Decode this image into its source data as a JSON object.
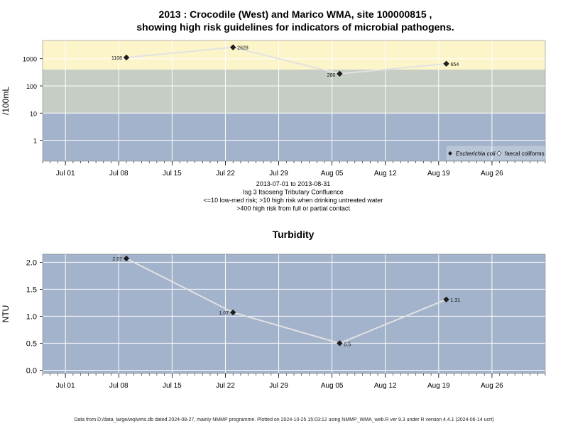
{
  "chart_data": [
    {
      "type": "scatter",
      "title": "2013 : Crocodile (West) and Marico WMA, site 100000815 ,",
      "subtitle": "showing high risk guidelines for indicators of microbial pathogens.",
      "ylabel": "/100mL",
      "y_scale": "log",
      "yticks": [
        1,
        10,
        100,
        1000
      ],
      "ytick_labels": [
        "1",
        "10",
        "100",
        "1000"
      ],
      "xticks": [
        "Jul 01",
        "Jul 08",
        "Jul 15",
        "Jul 22",
        "Jul 29",
        "Aug 05",
        "Aug 12",
        "Aug 19",
        "Aug 26"
      ],
      "xtick_dates": [
        "2013-07-01",
        "2013-07-08",
        "2013-07-15",
        "2013-07-22",
        "2013-07-29",
        "2013-08-05",
        "2013-08-12",
        "2013-08-19",
        "2013-08-26"
      ],
      "x_range": [
        "2013-06-28",
        "2013-09-02"
      ],
      "y_range": [
        0.17,
        4700
      ],
      "grid": true,
      "legend_position": "bottom-right",
      "bands": [
        {
          "from": 0.17,
          "to": 10,
          "color": "#a2b3cb",
          "label": "<=10 low-med risk"
        },
        {
          "from": 10,
          "to": 400,
          "color": "#c5cdc4",
          "label": ">10 high risk when drinking untreated water"
        },
        {
          "from": 400,
          "to": 4700,
          "color": "#fcf5c9",
          "label": ">400 high risk from full or partial contact"
        }
      ],
      "series": [
        {
          "name": "Escherichia coli",
          "marker": "filled-diamond",
          "points": [
            {
              "x": "2013-07-09",
              "y": 1108,
              "label": "1108"
            },
            {
              "x": "2013-07-23",
              "y": 2628,
              "label": "2628"
            },
            {
              "x": "2013-08-06",
              "y": 280,
              "label": "280"
            },
            {
              "x": "2013-08-20",
              "y": 654,
              "label": "654"
            }
          ]
        },
        {
          "name": "faecal coliforms",
          "marker": "open-diamond",
          "points": []
        }
      ],
      "caption_lines": [
        "2013-07-01 to 2013-08-31",
        "Isg 3 Itsoseng Tributary Confluence",
        "<=10 low-med risk; >10 high risk when drinking untreated water",
        ">400 high risk from full or partial contact"
      ]
    },
    {
      "type": "line",
      "title": "Turbidity",
      "ylabel": "NTU",
      "y_scale": "linear",
      "yticks": [
        0,
        0.5,
        1,
        1.5,
        2
      ],
      "ytick_labels": [
        "0.0",
        "0.5",
        "1.0",
        "1.5",
        "2.0"
      ],
      "xticks": [
        "Jul 01",
        "Jul 08",
        "Jul 15",
        "Jul 22",
        "Jul 29",
        "Aug 05",
        "Aug 12",
        "Aug 19",
        "Aug 26"
      ],
      "xtick_dates": [
        "2013-07-01",
        "2013-07-08",
        "2013-07-15",
        "2013-07-22",
        "2013-07-29",
        "2013-08-05",
        "2013-08-12",
        "2013-08-19",
        "2013-08-26"
      ],
      "x_range": [
        "2013-06-28",
        "2013-09-02"
      ],
      "y_range": [
        -0.06,
        2.15
      ],
      "grid": true,
      "background": "#a2b3cb",
      "series": [
        {
          "name": "",
          "points": [
            {
              "x": "2013-07-09",
              "y": 2.07,
              "label": "2.07"
            },
            {
              "x": "2013-07-23",
              "y": 1.07,
              "label": "1.07"
            },
            {
              "x": "2013-08-06",
              "y": 0.5,
              "label": "0.5"
            },
            {
              "x": "2013-08-20",
              "y": 1.31,
              "label": "1.31"
            }
          ]
        }
      ]
    }
  ],
  "footer": "Data from D:/data_large/wq/wms.db dated 2024-08-27, mainly NMMP programme. Plotted on 2024-10-25 15:03:12 using NMMP_WMA_web.R ver 9.3 under R version 4.4.1 (2024-06-14 ucrt)"
}
